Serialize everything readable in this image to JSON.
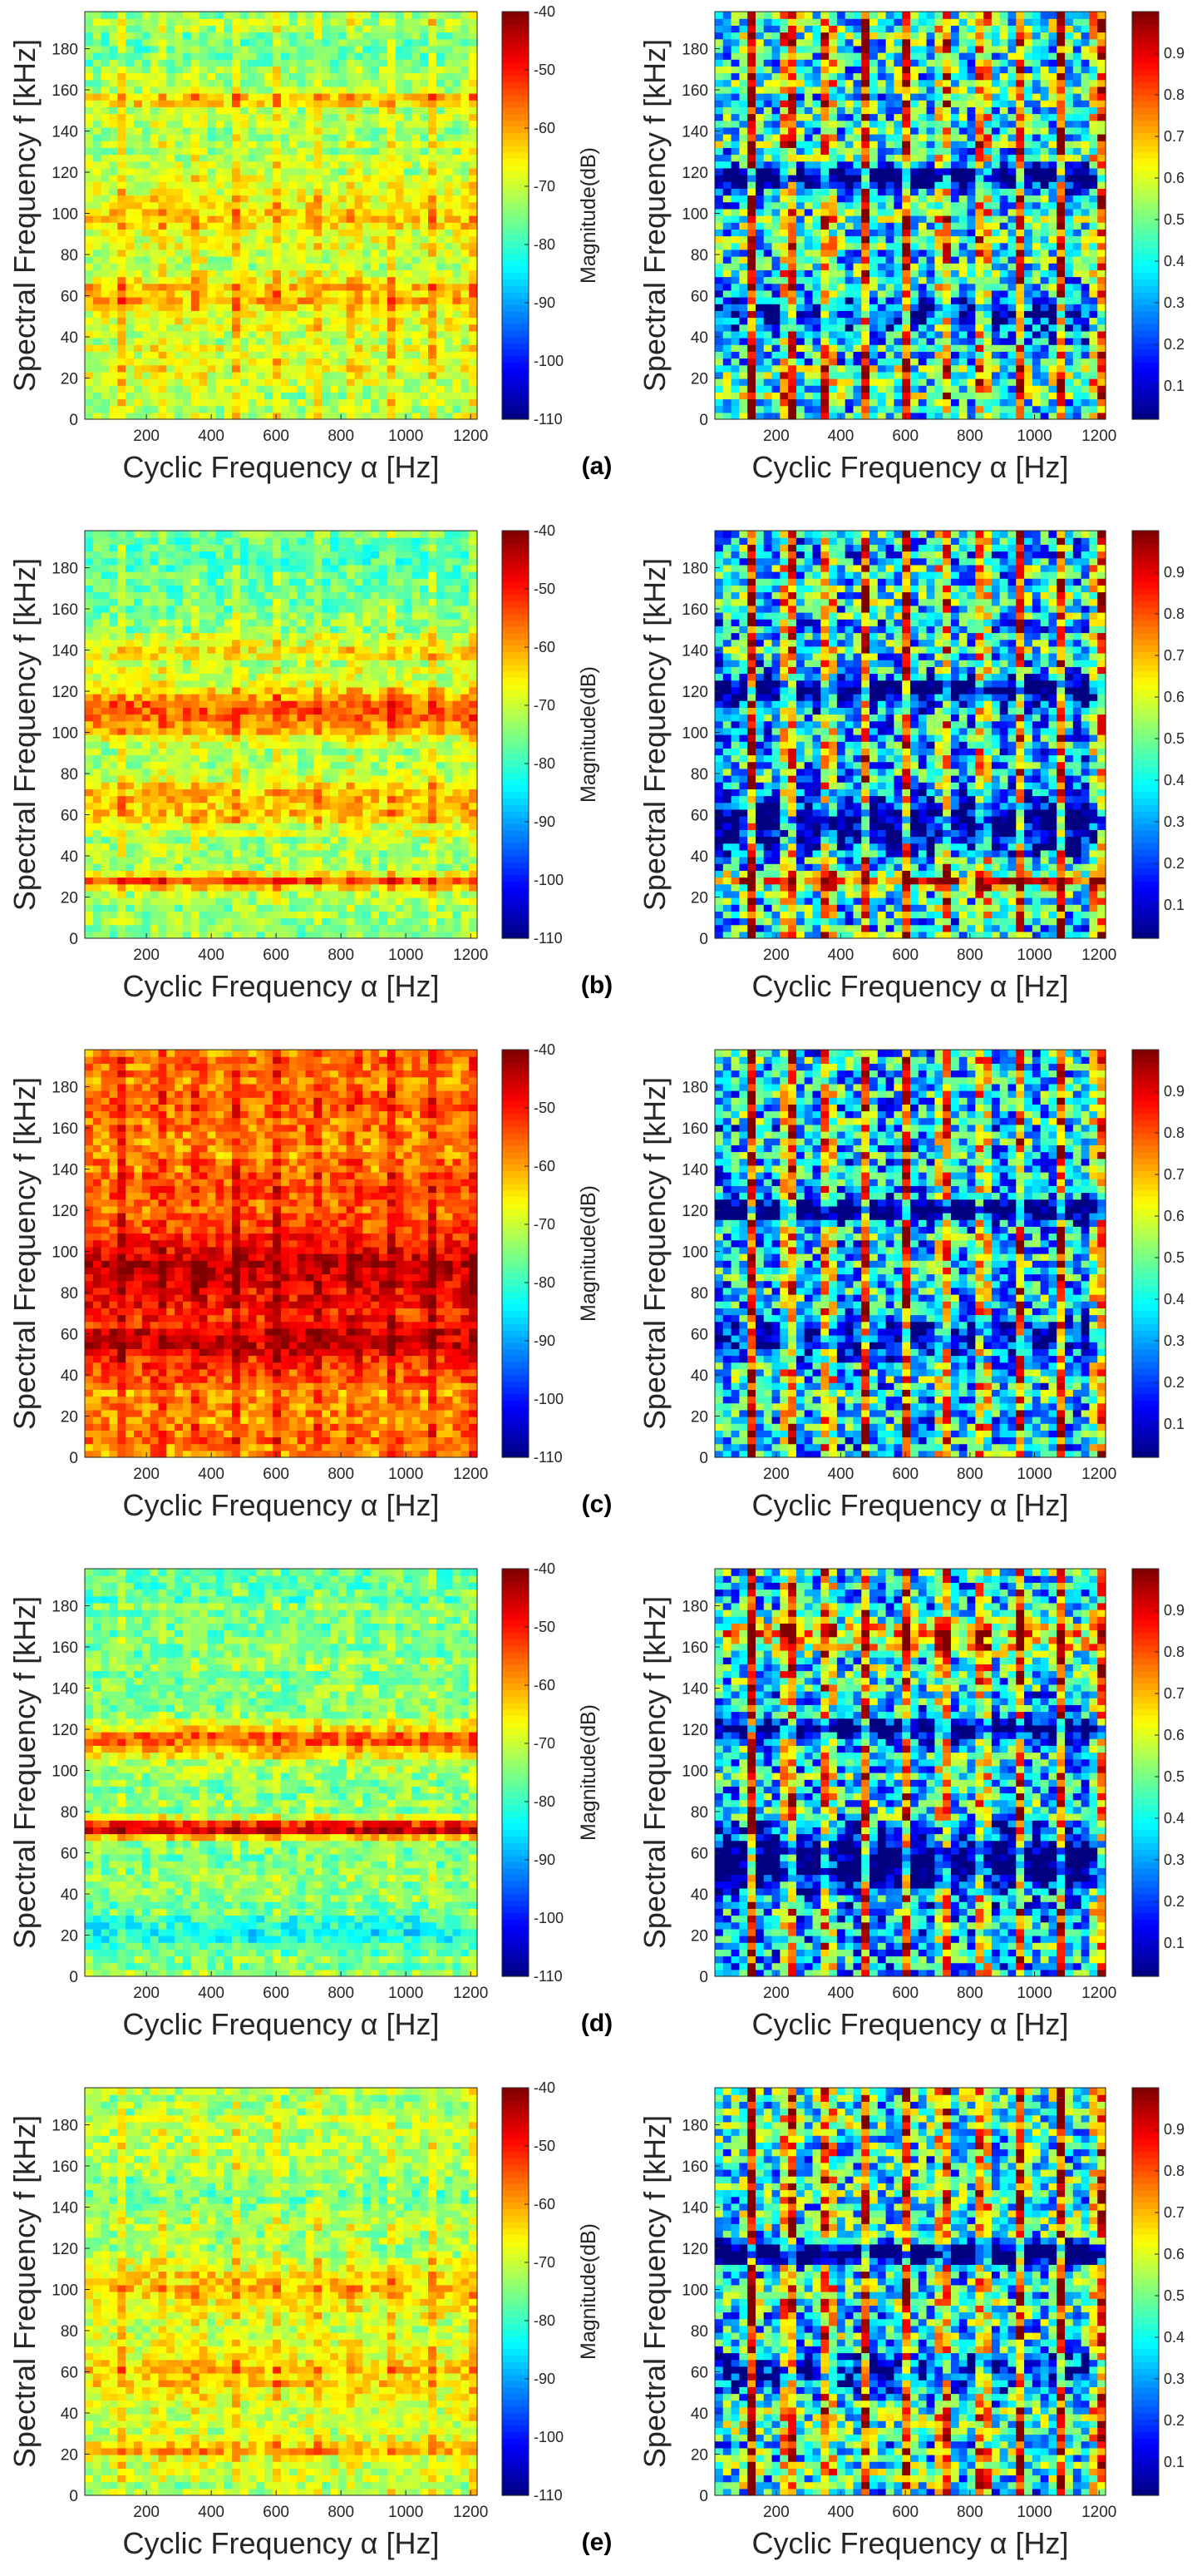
{
  "figure": {
    "rows": [
      {
        "label": "(a)"
      },
      {
        "label": "(b)"
      },
      {
        "label": "(c)"
      },
      {
        "label": "(d)"
      },
      {
        "label": "(e)"
      }
    ]
  },
  "axes": {
    "xlabel": "Cyclic Frequency α [Hz]",
    "ylabel": "Spectral Frequency f [kHz]",
    "xticks": [
      200,
      400,
      600,
      800,
      1000,
      1200
    ],
    "yticks": [
      0,
      20,
      40,
      60,
      80,
      100,
      120,
      140,
      160,
      180
    ],
    "xlim": [
      10,
      1220
    ],
    "ylim": [
      0,
      198
    ]
  },
  "colorbars": {
    "magnitude": {
      "label": "Magnitude(dB)",
      "ticks": [
        -40,
        -50,
        -60,
        -70,
        -80,
        -90,
        -100,
        -110
      ],
      "range": [
        -110,
        -40
      ]
    },
    "coherence": {
      "label": "",
      "ticks": [
        0.9,
        0.8,
        0.7,
        0.6,
        0.5,
        0.4,
        0.3,
        0.2,
        0.1
      ],
      "range": [
        0.02,
        1.0
      ]
    }
  },
  "colormap": "jet",
  "chart_data": [
    {
      "type": "heatmap",
      "panel": "(a)",
      "column": "left",
      "metric": "magnitude",
      "units": "dB",
      "xlabel": "Cyclic Frequency α [Hz]",
      "ylabel": "Spectral Frequency f [kHz]",
      "xlim": [
        10,
        1220
      ],
      "ylim": [
        0,
        198
      ],
      "clim": [
        -110,
        -40
      ],
      "grid": false,
      "base": -72,
      "x_harmonics_hz": [
        120,
        240,
        360,
        480,
        600,
        720,
        840,
        960,
        1080,
        1200
      ],
      "harmonic_strength": 7,
      "bands_khz": [
        {
          "center": 60,
          "width": 8,
          "gain": 10
        },
        {
          "center": 100,
          "width": 10,
          "gain": 8
        },
        {
          "center": 30,
          "width": 6,
          "gain": 4
        },
        {
          "center": 155,
          "width": 2,
          "gain": 12
        },
        {
          "center": 180,
          "width": 6,
          "gain": -6
        }
      ]
    },
    {
      "type": "heatmap",
      "panel": "(a)",
      "column": "right",
      "metric": "coherence",
      "xlabel": "Cyclic Frequency α [Hz]",
      "ylabel": "Spectral Frequency f [kHz]",
      "xlim": [
        10,
        1220
      ],
      "ylim": [
        0,
        198
      ],
      "clim": [
        0.02,
        1.0
      ],
      "grid": false,
      "base": 0.5,
      "x_harmonics_hz": [
        120,
        240,
        360,
        480,
        600,
        720,
        840,
        960,
        1080,
        1200
      ],
      "harmonic_strength": 0.45,
      "bands_khz": [
        {
          "center": 118,
          "width": 4,
          "gain": -0.55
        },
        {
          "center": 50,
          "width": 8,
          "gain": -0.25
        }
      ]
    },
    {
      "type": "heatmap",
      "panel": "(b)",
      "column": "left",
      "metric": "magnitude",
      "units": "dB",
      "xlabel": "Cyclic Frequency α [Hz]",
      "ylabel": "Spectral Frequency f [kHz]",
      "xlim": [
        10,
        1220
      ],
      "ylim": [
        0,
        198
      ],
      "clim": [
        -110,
        -40
      ],
      "grid": false,
      "base": -75,
      "x_harmonics_hz": [
        120,
        240,
        360,
        480,
        600,
        720,
        840,
        960,
        1080,
        1200
      ],
      "harmonic_strength": 5,
      "bands_khz": [
        {
          "center": 110,
          "width": 10,
          "gain": 20
        },
        {
          "center": 65,
          "width": 9,
          "gain": 14
        },
        {
          "center": 28,
          "width": 3,
          "gain": 20
        },
        {
          "center": 140,
          "width": 5,
          "gain": 8
        },
        {
          "center": 185,
          "width": 8,
          "gain": -4
        }
      ]
    },
    {
      "type": "heatmap",
      "panel": "(b)",
      "column": "right",
      "metric": "coherence",
      "xlabel": "Cyclic Frequency α [Hz]",
      "ylabel": "Spectral Frequency f [kHz]",
      "xlim": [
        10,
        1220
      ],
      "ylim": [
        0,
        198
      ],
      "clim": [
        0.02,
        1.0
      ],
      "grid": false,
      "base": 0.45,
      "x_harmonics_hz": [
        120,
        240,
        360,
        480,
        600,
        720,
        840,
        960,
        1080,
        1200
      ],
      "harmonic_strength": 0.45,
      "bands_khz": [
        {
          "center": 120,
          "width": 5,
          "gain": -0.45
        },
        {
          "center": 55,
          "width": 9,
          "gain": -0.4
        },
        {
          "center": 28,
          "width": 3,
          "gain": 0.4
        }
      ]
    },
    {
      "type": "heatmap",
      "panel": "(c)",
      "column": "left",
      "metric": "magnitude",
      "units": "dB",
      "xlabel": "Cyclic Frequency α [Hz]",
      "ylabel": "Spectral Frequency f [kHz]",
      "xlim": [
        10,
        1220
      ],
      "ylim": [
        0,
        198
      ],
      "clim": [
        -110,
        -40
      ],
      "grid": false,
      "base": -58,
      "x_harmonics_hz": [
        120,
        240,
        360,
        480,
        600,
        720,
        840,
        960,
        1080,
        1200
      ],
      "harmonic_strength": 7,
      "bands_khz": [
        {
          "center": 90,
          "width": 14,
          "gain": 13
        },
        {
          "center": 55,
          "width": 8,
          "gain": 11
        },
        {
          "center": 130,
          "width": 6,
          "gain": 4
        },
        {
          "center": 175,
          "width": 4,
          "gain": 3
        }
      ]
    },
    {
      "type": "heatmap",
      "panel": "(c)",
      "column": "right",
      "metric": "coherence",
      "xlabel": "Cyclic Frequency α [Hz]",
      "ylabel": "Spectral Frequency f [kHz]",
      "xlim": [
        10,
        1220
      ],
      "ylim": [
        0,
        198
      ],
      "clim": [
        0.02,
        1.0
      ],
      "grid": false,
      "base": 0.45,
      "x_harmonics_hz": [
        120,
        240,
        360,
        480,
        600,
        720,
        840,
        960,
        1080,
        1200
      ],
      "harmonic_strength": 0.45,
      "bands_khz": [
        {
          "center": 120,
          "width": 4,
          "gain": -0.5
        },
        {
          "center": 58,
          "width": 6,
          "gain": -0.3
        }
      ]
    },
    {
      "type": "heatmap",
      "panel": "(d)",
      "column": "left",
      "metric": "magnitude",
      "units": "dB",
      "xlabel": "Cyclic Frequency α [Hz]",
      "ylabel": "Spectral Frequency f [kHz]",
      "xlim": [
        10,
        1220
      ],
      "ylim": [
        0,
        198
      ],
      "clim": [
        -110,
        -40
      ],
      "grid": false,
      "base": -75,
      "x_harmonics_hz": [
        120,
        240,
        360,
        480,
        600,
        720,
        840,
        960,
        1080,
        1200
      ],
      "harmonic_strength": 3,
      "bands_khz": [
        {
          "center": 72,
          "width": 3,
          "gain": 30
        },
        {
          "center": 115,
          "width": 6,
          "gain": 18
        },
        {
          "center": 22,
          "width": 6,
          "gain": -8
        },
        {
          "center": 188,
          "width": 5,
          "gain": -4
        }
      ]
    },
    {
      "type": "heatmap",
      "panel": "(d)",
      "column": "right",
      "metric": "coherence",
      "xlabel": "Cyclic Frequency α [Hz]",
      "ylabel": "Spectral Frequency f [kHz]",
      "xlim": [
        10,
        1220
      ],
      "ylim": [
        0,
        198
      ],
      "clim": [
        0.02,
        1.0
      ],
      "grid": false,
      "base": 0.45,
      "x_harmonics_hz": [
        120,
        240,
        360,
        480,
        600,
        720,
        840,
        960,
        1080,
        1200
      ],
      "harmonic_strength": 0.45,
      "bands_khz": [
        {
          "center": 120,
          "width": 4,
          "gain": -0.45
        },
        {
          "center": 55,
          "width": 10,
          "gain": -0.45
        },
        {
          "center": 165,
          "width": 6,
          "gain": 0.3
        }
      ]
    },
    {
      "type": "heatmap",
      "panel": "(e)",
      "column": "left",
      "metric": "magnitude",
      "units": "dB",
      "xlabel": "Cyclic Frequency α [Hz]",
      "ylabel": "Spectral Frequency f [kHz]",
      "xlim": [
        10,
        1220
      ],
      "ylim": [
        0,
        198
      ],
      "clim": [
        -110,
        -40
      ],
      "grid": false,
      "base": -72,
      "x_harmonics_hz": [
        120,
        240,
        360,
        480,
        600,
        720,
        840,
        960,
        1080,
        1200
      ],
      "harmonic_strength": 6,
      "bands_khz": [
        {
          "center": 100,
          "width": 7,
          "gain": 10
        },
        {
          "center": 60,
          "width": 10,
          "gain": 9
        },
        {
          "center": 22,
          "width": 3,
          "gain": 10
        },
        {
          "center": 150,
          "width": 8,
          "gain": -4
        }
      ]
    },
    {
      "type": "heatmap",
      "panel": "(e)",
      "column": "right",
      "metric": "coherence",
      "xlabel": "Cyclic Frequency α [Hz]",
      "ylabel": "Spectral Frequency f [kHz]",
      "xlim": [
        10,
        1220
      ],
      "ylim": [
        0,
        198
      ],
      "clim": [
        0.02,
        1.0
      ],
      "grid": false,
      "base": 0.5,
      "x_harmonics_hz": [
        120,
        240,
        360,
        480,
        600,
        720,
        840,
        960,
        1080,
        1200
      ],
      "harmonic_strength": 0.45,
      "bands_khz": [
        {
          "center": 118,
          "width": 4,
          "gain": -0.55
        },
        {
          "center": 60,
          "width": 6,
          "gain": -0.3
        }
      ]
    }
  ]
}
